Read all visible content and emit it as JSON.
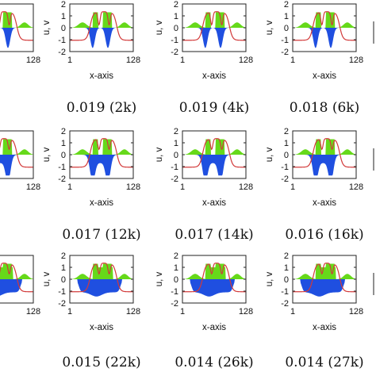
{
  "figure": {
    "x_axis_label": "x-axis",
    "y_axis_label": "u, v",
    "x_ticks": [
      "1",
      "128"
    ],
    "y_ticks": [
      "2",
      "1",
      "0",
      "-1",
      "-2"
    ]
  },
  "colors": {
    "u_fill": "#1f4fe0",
    "v_fill": "#66d91a",
    "curve": "#d23a3a",
    "frame": "#222222"
  },
  "chart_data": [
    {
      "type": "area",
      "panel": "r1-c0-partial",
      "caption": "",
      "x_label": "",
      "y_label": "",
      "x_ticks": [
        "128"
      ],
      "y_ticks": [],
      "xlim": [
        1,
        128
      ],
      "ylim": [
        -2,
        2
      ]
    },
    {
      "type": "area",
      "panel": "r1-c1",
      "caption": "0.019 (2k)",
      "x_label": "x-axis",
      "y_label": "u, v",
      "x_ticks": [
        "1",
        "128"
      ],
      "y_ticks": [
        "2",
        "1",
        "0",
        "-1",
        "-2"
      ],
      "xlim": [
        1,
        128
      ],
      "ylim": [
        -2,
        2
      ]
    },
    {
      "type": "area",
      "panel": "r1-c2",
      "caption": "0.019 (4k)",
      "x_label": "x-axis",
      "y_label": "u, v",
      "x_ticks": [
        "1",
        "128"
      ],
      "y_ticks": [
        "2",
        "1",
        "0",
        "-1",
        "-2"
      ],
      "xlim": [
        1,
        128
      ],
      "ylim": [
        -2,
        2
      ]
    },
    {
      "type": "area",
      "panel": "r1-c3",
      "caption": "0.018 (6k)",
      "x_label": "x-axis",
      "y_label": "u, v",
      "x_ticks": [
        "1",
        "128"
      ],
      "y_ticks": [
        "2",
        "1",
        "0",
        "-1",
        "-2"
      ],
      "xlim": [
        1,
        128
      ],
      "ylim": [
        -2,
        2
      ]
    },
    {
      "type": "area",
      "panel": "r2-c0-partial",
      "caption": "",
      "x_label": "",
      "y_label": "",
      "x_ticks": [
        "128"
      ],
      "y_ticks": [],
      "xlim": [
        1,
        128
      ],
      "ylim": [
        -2,
        2
      ]
    },
    {
      "type": "area",
      "panel": "r2-c1",
      "caption": "0.017 (12k)",
      "x_label": "x-axis",
      "y_label": "u, v",
      "x_ticks": [
        "1",
        "128"
      ],
      "y_ticks": [
        "2",
        "1",
        "0",
        "-1",
        "-2"
      ],
      "xlim": [
        1,
        128
      ],
      "ylim": [
        -2,
        2
      ]
    },
    {
      "type": "area",
      "panel": "r2-c2",
      "caption": "0.017 (14k)",
      "x_label": "x-axis",
      "y_label": "u, v",
      "x_ticks": [
        "1",
        "128"
      ],
      "y_ticks": [
        "2",
        "1",
        "0",
        "-1",
        "-2"
      ],
      "xlim": [
        1,
        128
      ],
      "ylim": [
        -2,
        2
      ]
    },
    {
      "type": "area",
      "panel": "r2-c3",
      "caption": "0.016 (16k)",
      "x_label": "x-axis",
      "y_label": "u, v",
      "x_ticks": [
        "1",
        "128"
      ],
      "y_ticks": [
        "2",
        "1",
        "0",
        "-1",
        "-2"
      ],
      "xlim": [
        1,
        128
      ],
      "ylim": [
        -2,
        2
      ]
    },
    {
      "type": "area",
      "panel": "r3-c0-partial",
      "caption": "",
      "x_label": "",
      "y_label": "",
      "x_ticks": [
        "128"
      ],
      "y_ticks": [],
      "xlim": [
        1,
        128
      ],
      "ylim": [
        -2,
        2
      ]
    },
    {
      "type": "area",
      "panel": "r3-c1",
      "caption": "0.015 (22k)",
      "x_label": "x-axis",
      "y_label": "u, v",
      "x_ticks": [
        "1",
        "128"
      ],
      "y_ticks": [
        "2",
        "1",
        "0",
        "-1",
        "-2"
      ],
      "xlim": [
        1,
        128
      ],
      "ylim": [
        -2,
        2
      ]
    },
    {
      "type": "area",
      "panel": "r3-c2",
      "caption": "0.014 (26k)",
      "x_label": "x-axis",
      "y_label": "u, v",
      "x_ticks": [
        "1",
        "128"
      ],
      "y_ticks": [
        "2",
        "1",
        "0",
        "-1",
        "-2"
      ],
      "xlim": [
        1,
        128
      ],
      "ylim": [
        -2,
        2
      ]
    },
    {
      "type": "area",
      "panel": "r3-c3",
      "caption": "0.014 (27k)",
      "x_label": "x-axis",
      "y_label": "u, v",
      "x_ticks": [
        "1",
        "128"
      ],
      "y_ticks": [
        "2",
        "1",
        "0",
        "-1",
        "-2"
      ],
      "xlim": [
        1,
        128
      ],
      "ylim": [
        -2,
        2
      ]
    }
  ]
}
